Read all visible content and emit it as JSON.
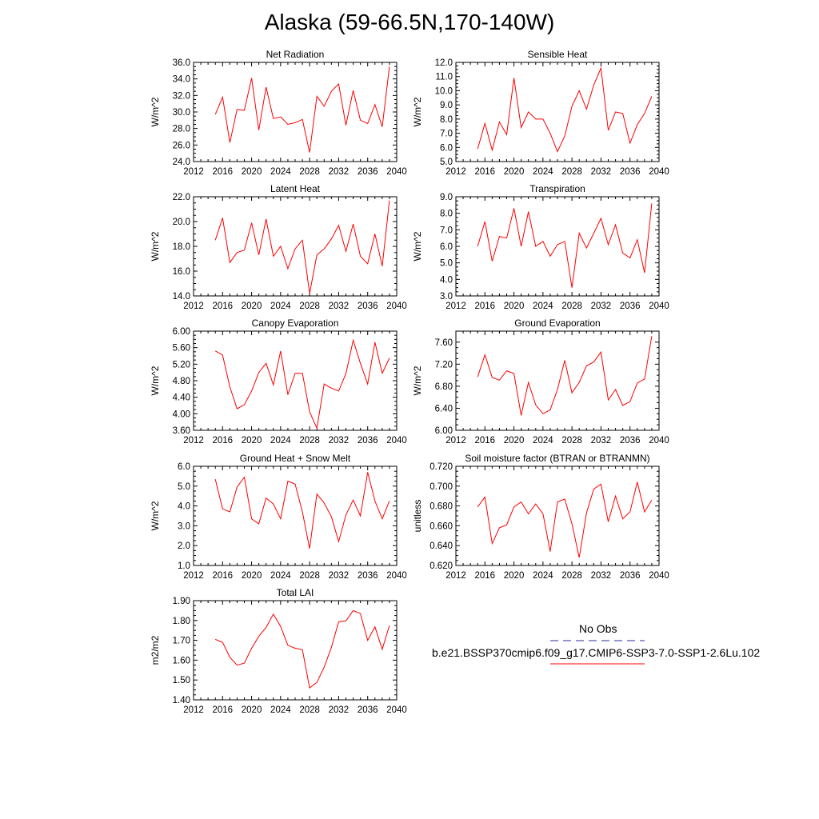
{
  "figure": {
    "title": "Alaska (59-66.5N,170-140W)"
  },
  "legend": {
    "entries": [
      {
        "label": "No Obs",
        "color": "#2b2b9b",
        "style": "dashed"
      },
      {
        "label": "b.e21.BSSP370cmip6.f09_g17.CMIP6-SSP3-7.0-SSP1-2.6Lu.102",
        "color": "#ff0000",
        "style": "solid"
      }
    ]
  },
  "chart_data": [
    {
      "type": "line",
      "title": "Net Radiation",
      "ylabel": "W/m^2",
      "xlim": [
        2012,
        2040
      ],
      "ylim": [
        24.0,
        36.0
      ],
      "xticks": [
        2012,
        2016,
        2020,
        2024,
        2028,
        2032,
        2036,
        2040
      ],
      "yticks": [
        "24.0",
        "26.0",
        "28.0",
        "30.0",
        "32.0",
        "34.0",
        "36.0"
      ],
      "x": [
        2015,
        2016,
        2017,
        2018,
        2019,
        2020,
        2021,
        2022,
        2023,
        2024,
        2025,
        2026,
        2027,
        2028,
        2029,
        2030,
        2031,
        2032,
        2033,
        2034,
        2035,
        2036,
        2037,
        2038,
        2039
      ],
      "series": [
        {
          "color": "#ff0000",
          "values": [
            29.7,
            31.8,
            26.3,
            30.3,
            30.2,
            34.1,
            27.8,
            33.0,
            29.2,
            29.4,
            28.5,
            28.7,
            29.1,
            25.1,
            31.9,
            30.7,
            32.5,
            33.4,
            28.4,
            32.6,
            29.0,
            28.6,
            30.9,
            28.2,
            35.5
          ]
        }
      ]
    },
    {
      "type": "line",
      "title": "Sensible Heat",
      "ylabel": "W/m^2",
      "xlim": [
        2012,
        2040
      ],
      "ylim": [
        5.0,
        12.0
      ],
      "xticks": [
        2012,
        2016,
        2020,
        2024,
        2028,
        2032,
        2036,
        2040
      ],
      "yticks": [
        "5.0",
        "6.0",
        "7.0",
        "8.0",
        "9.0",
        "10.0",
        "11.0",
        "12.0"
      ],
      "x": [
        2015,
        2016,
        2017,
        2018,
        2019,
        2020,
        2021,
        2022,
        2023,
        2024,
        2025,
        2026,
        2027,
        2028,
        2029,
        2030,
        2031,
        2032,
        2033,
        2034,
        2035,
        2036,
        2037,
        2038,
        2039
      ],
      "series": [
        {
          "color": "#ff0000",
          "values": [
            5.9,
            7.7,
            5.8,
            7.8,
            6.9,
            10.9,
            7.4,
            8.5,
            8.0,
            8.0,
            7.0,
            5.7,
            6.8,
            8.9,
            10.0,
            8.7,
            10.4,
            11.6,
            7.2,
            8.5,
            8.4,
            6.3,
            7.6,
            8.4,
            9.6
          ]
        }
      ]
    },
    {
      "type": "line",
      "title": "Latent Heat",
      "ylabel": "W/m^2",
      "xlim": [
        2012,
        2040
      ],
      "ylim": [
        14.0,
        22.0
      ],
      "xticks": [
        2012,
        2016,
        2020,
        2024,
        2028,
        2032,
        2036,
        2040
      ],
      "yticks": [
        "14.0",
        "16.0",
        "18.0",
        "20.0",
        "22.0"
      ],
      "x": [
        2015,
        2016,
        2017,
        2018,
        2019,
        2020,
        2021,
        2022,
        2023,
        2024,
        2025,
        2026,
        2027,
        2028,
        2029,
        2030,
        2031,
        2032,
        2033,
        2034,
        2035,
        2036,
        2037,
        2038,
        2039
      ],
      "series": [
        {
          "color": "#ff0000",
          "values": [
            18.5,
            20.3,
            16.7,
            17.5,
            17.7,
            19.9,
            17.3,
            20.2,
            17.2,
            18.0,
            16.2,
            17.8,
            18.5,
            14.2,
            17.3,
            17.8,
            18.6,
            19.7,
            17.6,
            19.8,
            17.2,
            16.6,
            19.0,
            16.4,
            21.7
          ]
        }
      ]
    },
    {
      "type": "line",
      "title": "Transpiration",
      "ylabel": "W/m^2",
      "xlim": [
        2012,
        2040
      ],
      "ylim": [
        3.0,
        9.0
      ],
      "xticks": [
        2012,
        2016,
        2020,
        2024,
        2028,
        2032,
        2036,
        2040
      ],
      "yticks": [
        "3.0",
        "4.0",
        "5.0",
        "6.0",
        "7.0",
        "8.0",
        "9.0"
      ],
      "x": [
        2015,
        2016,
        2017,
        2018,
        2019,
        2020,
        2021,
        2022,
        2023,
        2024,
        2025,
        2026,
        2027,
        2028,
        2029,
        2030,
        2031,
        2032,
        2033,
        2034,
        2035,
        2036,
        2037,
        2038,
        2039
      ],
      "series": [
        {
          "color": "#ff0000",
          "values": [
            6.0,
            7.5,
            5.1,
            6.6,
            6.5,
            8.3,
            6.0,
            8.1,
            6.0,
            6.3,
            5.4,
            6.1,
            6.3,
            3.5,
            6.8,
            5.9,
            6.8,
            7.7,
            6.1,
            7.3,
            5.6,
            5.3,
            6.4,
            4.4,
            8.6
          ]
        }
      ]
    },
    {
      "type": "line",
      "title": "Canopy Evaporation",
      "ylabel": "W/m^2",
      "xlim": [
        2012,
        2040
      ],
      "ylim": [
        3.6,
        6.0
      ],
      "xticks": [
        2012,
        2016,
        2020,
        2024,
        2028,
        2032,
        2036,
        2040
      ],
      "yticks": [
        "3.60",
        "4.00",
        "4.40",
        "4.80",
        "5.20",
        "5.60",
        "6.00"
      ],
      "x": [
        2015,
        2016,
        2017,
        2018,
        2019,
        2020,
        2021,
        2022,
        2023,
        2024,
        2025,
        2026,
        2027,
        2028,
        2029,
        2030,
        2031,
        2032,
        2033,
        2034,
        2035,
        2036,
        2037,
        2038,
        2039
      ],
      "series": [
        {
          "color": "#ff0000",
          "values": [
            5.52,
            5.42,
            4.65,
            4.12,
            4.22,
            4.55,
            5.0,
            5.22,
            4.7,
            5.52,
            4.46,
            4.98,
            4.98,
            4.05,
            3.65,
            4.72,
            4.62,
            4.55,
            4.97,
            5.78,
            5.22,
            4.72,
            5.73,
            4.98,
            5.35
          ]
        }
      ]
    },
    {
      "type": "line",
      "title": "Ground Evaporation",
      "ylabel": "W/m^2",
      "xlim": [
        2012,
        2040
      ],
      "ylim": [
        6.0,
        7.8
      ],
      "xticks": [
        2012,
        2016,
        2020,
        2024,
        2028,
        2032,
        2036,
        2040
      ],
      "yticks": [
        "6.00",
        "6.40",
        "6.80",
        "7.20",
        "7.60"
      ],
      "x": [
        2015,
        2016,
        2017,
        2018,
        2019,
        2020,
        2021,
        2022,
        2023,
        2024,
        2025,
        2026,
        2027,
        2028,
        2029,
        2030,
        2031,
        2032,
        2033,
        2034,
        2035,
        2036,
        2037,
        2038,
        2039
      ],
      "series": [
        {
          "color": "#ff0000",
          "values": [
            6.97,
            7.37,
            6.96,
            6.91,
            7.08,
            7.03,
            6.27,
            6.87,
            6.46,
            6.3,
            6.37,
            6.74,
            7.27,
            6.68,
            6.87,
            7.17,
            7.24,
            7.42,
            6.55,
            6.74,
            6.45,
            6.52,
            6.86,
            6.93,
            7.71
          ]
        }
      ]
    },
    {
      "type": "line",
      "title": "Ground Heat + Snow Melt",
      "ylabel": "W/m^2",
      "xlim": [
        2012,
        2040
      ],
      "ylim": [
        1.0,
        6.0
      ],
      "xticks": [
        2012,
        2016,
        2020,
        2024,
        2028,
        2032,
        2036,
        2040
      ],
      "yticks": [
        "1.0",
        "2.0",
        "3.0",
        "4.0",
        "5.0",
        "6.0"
      ],
      "x": [
        2015,
        2016,
        2017,
        2018,
        2019,
        2020,
        2021,
        2022,
        2023,
        2024,
        2025,
        2026,
        2027,
        2028,
        2029,
        2030,
        2031,
        2032,
        2033,
        2034,
        2035,
        2036,
        2037,
        2038,
        2039
      ],
      "series": [
        {
          "color": "#ff0000",
          "values": [
            5.35,
            3.85,
            3.7,
            4.95,
            5.45,
            3.35,
            3.1,
            4.4,
            4.1,
            3.35,
            5.25,
            5.1,
            3.7,
            1.85,
            4.6,
            4.15,
            3.45,
            2.2,
            3.55,
            4.3,
            3.5,
            5.7,
            4.25,
            3.35,
            4.25
          ]
        }
      ]
    },
    {
      "type": "line",
      "title": "Soil moisture factor (BTRAN or BTRANMN)",
      "ylabel": "unitless",
      "xlim": [
        2012,
        2040
      ],
      "ylim": [
        0.62,
        0.72
      ],
      "xticks": [
        2012,
        2016,
        2020,
        2024,
        2028,
        2032,
        2036,
        2040
      ],
      "yticks": [
        "0.620",
        "0.640",
        "0.660",
        "0.680",
        "0.700",
        "0.720"
      ],
      "x": [
        2015,
        2016,
        2017,
        2018,
        2019,
        2020,
        2021,
        2022,
        2023,
        2024,
        2025,
        2026,
        2027,
        2028,
        2029,
        2030,
        2031,
        2032,
        2033,
        2034,
        2035,
        2036,
        2037,
        2038,
        2039
      ],
      "series": [
        {
          "color": "#ff0000",
          "values": [
            0.679,
            0.689,
            0.642,
            0.658,
            0.661,
            0.679,
            0.684,
            0.672,
            0.682,
            0.672,
            0.634,
            0.684,
            0.687,
            0.662,
            0.628,
            0.673,
            0.697,
            0.702,
            0.664,
            0.69,
            0.667,
            0.674,
            0.704,
            0.674,
            0.686
          ]
        }
      ]
    },
    {
      "type": "line",
      "title": "Total LAI",
      "ylabel": "m2/m2",
      "xlim": [
        2012,
        2040
      ],
      "ylim": [
        1.4,
        1.9
      ],
      "xticks": [
        2012,
        2016,
        2020,
        2024,
        2028,
        2032,
        2036,
        2040
      ],
      "yticks": [
        "1.40",
        "1.50",
        "1.60",
        "1.70",
        "1.80",
        "1.90"
      ],
      "x": [
        2015,
        2016,
        2017,
        2018,
        2019,
        2020,
        2021,
        2022,
        2023,
        2024,
        2025,
        2026,
        2027,
        2028,
        2029,
        2030,
        2031,
        2032,
        2033,
        2034,
        2035,
        2036,
        2037,
        2038,
        2039
      ],
      "series": [
        {
          "color": "#ff0000",
          "values": [
            1.705,
            1.69,
            1.615,
            1.575,
            1.585,
            1.66,
            1.72,
            1.765,
            1.832,
            1.77,
            1.675,
            1.66,
            1.653,
            1.46,
            1.488,
            1.565,
            1.665,
            1.793,
            1.798,
            1.85,
            1.835,
            1.7,
            1.768,
            1.655,
            1.775
          ]
        }
      ]
    }
  ]
}
